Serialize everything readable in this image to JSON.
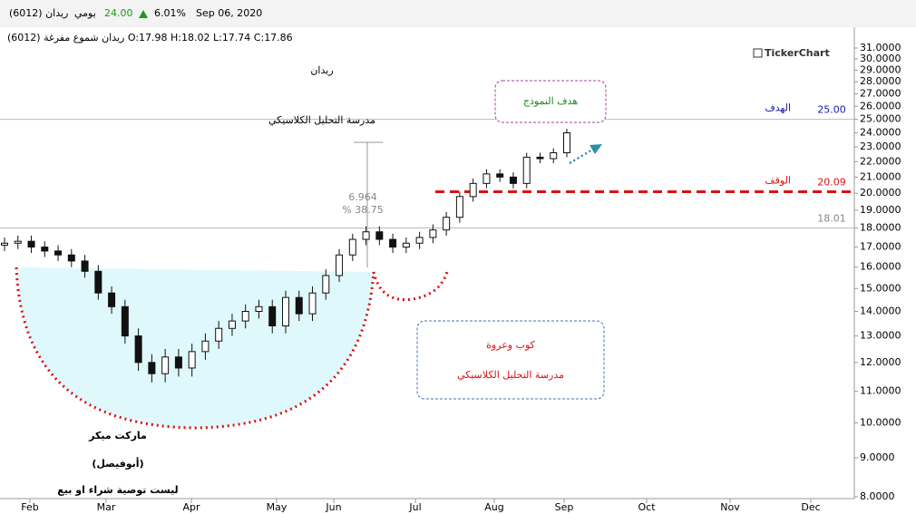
{
  "header": {
    "symbol": "ريدان (6012)",
    "period": "يومي",
    "price": "24.00",
    "change": "6.01%",
    "date": "Sep 06, 2020",
    "info": "ريدان شموع مفرغة (6012) O:17.98 H:18.02 L:17.74 C:17.86",
    "brand": "TickerChart"
  },
  "chart_data": {
    "type": "candlestick",
    "title": "ريدان",
    "subtitle": "مدرسة التحليل الكلاسيكي",
    "open": [
      17.1,
      17.2,
      17.3,
      17.0,
      16.8,
      16.6,
      16.3,
      15.8,
      14.8,
      14.2,
      13.0,
      12.0,
      11.6,
      12.2,
      11.8,
      12.4,
      12.8,
      13.3,
      13.6,
      14.0,
      14.2,
      13.4,
      14.6,
      13.9,
      14.8,
      15.6,
      16.6,
      17.4,
      17.8,
      17.4,
      17.0,
      17.2,
      17.5,
      17.9,
      18.6,
      19.8,
      20.6,
      21.2,
      21.0,
      20.6,
      22.3,
      22.2,
      22.6
    ],
    "high": [
      17.5,
      17.6,
      17.6,
      17.3,
      17.1,
      16.9,
      16.6,
      16.1,
      15.1,
      14.5,
      13.3,
      12.3,
      12.5,
      12.5,
      12.7,
      13.1,
      13.6,
      13.9,
      14.3,
      14.5,
      14.5,
      14.9,
      14.9,
      15.1,
      15.9,
      16.9,
      17.7,
      18.1,
      18.1,
      17.7,
      17.5,
      17.8,
      18.2,
      18.9,
      20.1,
      20.9,
      21.5,
      21.5,
      21.3,
      22.6,
      22.6,
      22.9,
      24.3
    ],
    "low": [
      16.8,
      16.9,
      16.7,
      16.5,
      16.3,
      16.0,
      15.5,
      14.5,
      13.9,
      12.7,
      11.7,
      11.3,
      11.3,
      11.5,
      11.5,
      12.1,
      12.5,
      13.0,
      13.3,
      13.7,
      13.1,
      13.1,
      13.6,
      13.6,
      14.5,
      15.3,
      16.3,
      17.1,
      17.1,
      16.7,
      16.7,
      16.9,
      17.2,
      17.6,
      18.3,
      19.5,
      20.3,
      20.7,
      20.3,
      20.3,
      21.9,
      21.9,
      22.3
    ],
    "close": [
      17.2,
      17.3,
      17.0,
      16.8,
      16.6,
      16.3,
      15.8,
      14.8,
      14.2,
      13.0,
      12.0,
      11.6,
      12.2,
      11.8,
      12.4,
      12.8,
      13.3,
      13.6,
      14.0,
      14.2,
      13.4,
      14.6,
      13.9,
      14.8,
      15.6,
      16.6,
      17.4,
      17.8,
      17.4,
      17.0,
      17.2,
      17.5,
      17.9,
      18.6,
      19.8,
      20.6,
      21.2,
      21.0,
      20.6,
      22.3,
      22.2,
      22.6,
      24.0
    ],
    "x_labels": [
      "Feb",
      "Mar",
      "Apr",
      "May",
      "Jun",
      "Jul",
      "Aug",
      "Sep",
      "Oct",
      "Nov",
      "Dec"
    ],
    "log_scale": true,
    "ylim": [
      8,
      31
    ],
    "yticks": [
      {
        "value": 8,
        "label": "8.0000"
      },
      {
        "value": 9,
        "label": "9.0000"
      },
      {
        "value": 10,
        "label": "10.0000"
      },
      {
        "value": 11,
        "label": "11.0000"
      },
      {
        "value": 12,
        "label": "12.0000"
      },
      {
        "value": 13,
        "label": "13.0000"
      },
      {
        "value": 14,
        "label": "14.0000"
      },
      {
        "value": 15,
        "label": "15.0000"
      },
      {
        "value": 16,
        "label": "16.0000"
      },
      {
        "value": 17,
        "label": "17.0000"
      },
      {
        "value": 18,
        "label": "18.0000"
      },
      {
        "value": 19,
        "label": "19.0000"
      },
      {
        "value": 20,
        "label": "20.0000"
      },
      {
        "value": 21,
        "label": "21.0000"
      },
      {
        "value": 22,
        "label": "22.0000"
      },
      {
        "value": 23,
        "label": "23.0000"
      },
      {
        "value": 24,
        "label": "24.0000"
      },
      {
        "value": 25,
        "label": "25.0000"
      },
      {
        "value": 26,
        "label": "26.0000"
      },
      {
        "value": 27,
        "label": "27.0000"
      },
      {
        "value": 28,
        "label": "28.0000"
      },
      {
        "value": 29,
        "label": "29.0000"
      },
      {
        "value": 30,
        "label": "30.0000"
      },
      {
        "value": 31,
        "label": "31.0000"
      }
    ],
    "levels": [
      {
        "name": "الهدف",
        "value": 25,
        "label": "25.00",
        "color": "#1a1aa0"
      },
      {
        "name": "الوقف",
        "value": 20.09,
        "label": "20.09",
        "color": "#d11"
      },
      {
        "value": 18.01,
        "label": "18.01",
        "color": "#888"
      }
    ],
    "annotations": {
      "measure": "6.964",
      "measure_pct": "% 38.75",
      "target_note": "هدف النموذج",
      "pattern": "كوب وعروة",
      "pattern_school": "مدرسة التحليل الكلاسيكي",
      "author": "ماركت ميكر",
      "author_alias": "(أبوفيصل)",
      "disclaimer": "ليست توصية شراء او بيع"
    }
  }
}
